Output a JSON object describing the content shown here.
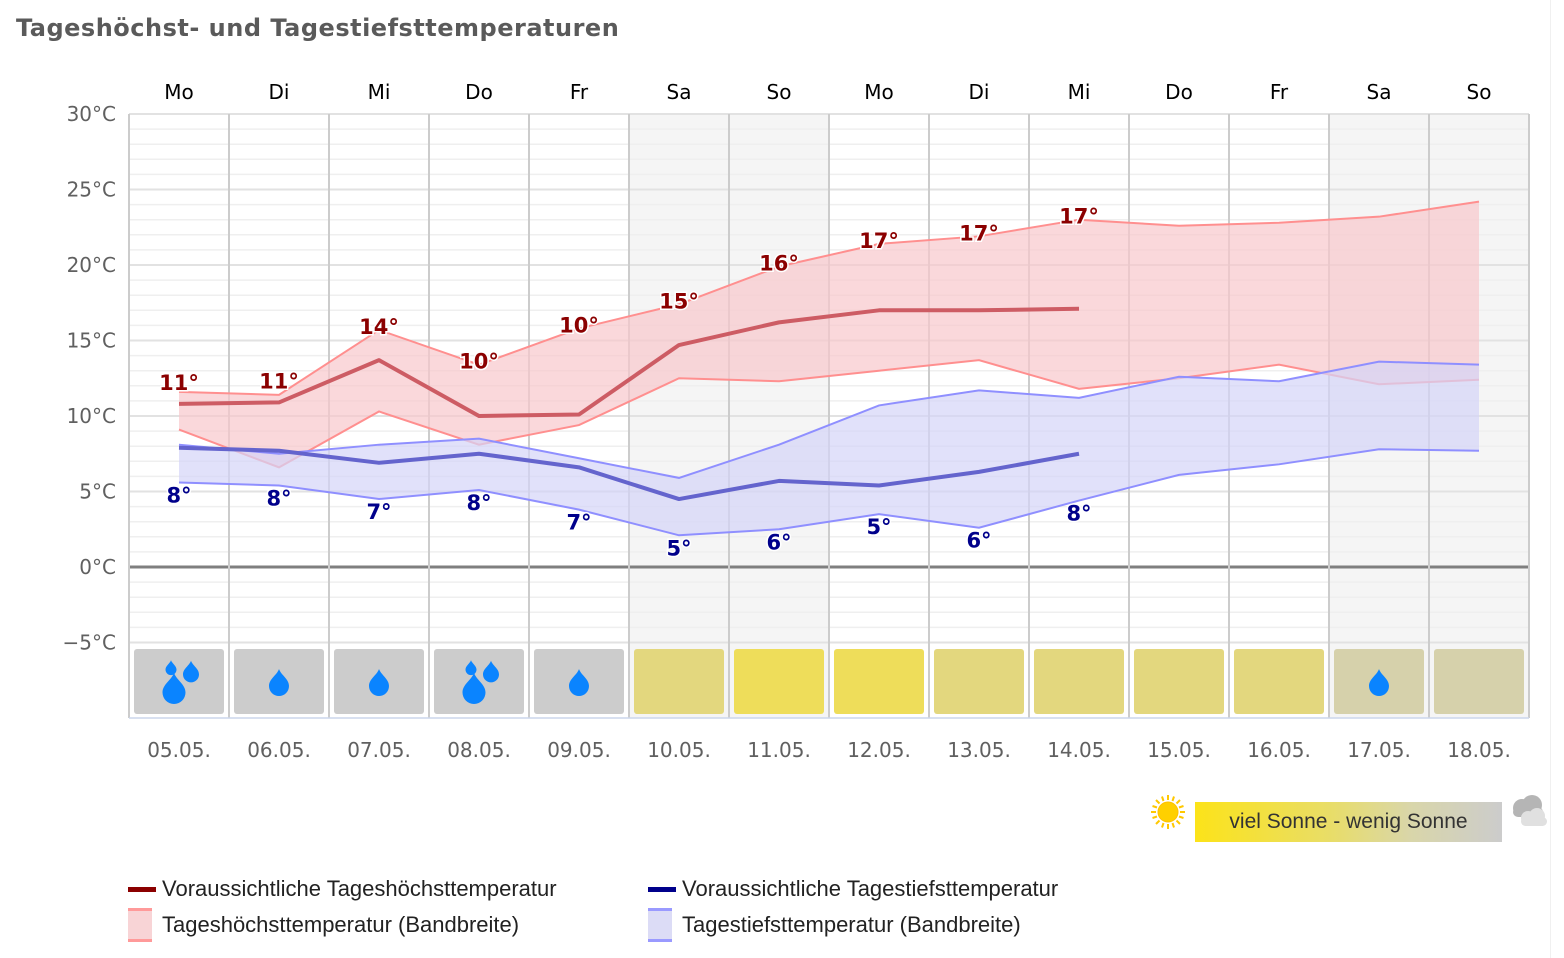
{
  "title": "Tageshöchst- und Tagestiefsttemperaturen",
  "chart_data": {
    "type": "line",
    "title": "Tageshöchst- und Tagestiefsttemperaturen",
    "weekdays": [
      "Mo",
      "Di",
      "Mi",
      "Do",
      "Fr",
      "Sa",
      "So",
      "Mo",
      "Di",
      "Mi",
      "Do",
      "Fr",
      "Sa",
      "So"
    ],
    "categories": [
      "05.05.",
      "06.05.",
      "07.05.",
      "08.05.",
      "09.05.",
      "10.05.",
      "11.05.",
      "12.05.",
      "13.05.",
      "14.05.",
      "15.05.",
      "16.05.",
      "17.05.",
      "18.05."
    ],
    "weekend_indices": [
      5,
      6,
      12,
      13
    ],
    "ylim": [
      -10,
      30
    ],
    "y_ticks": [
      30,
      25,
      20,
      15,
      10,
      5,
      0,
      -5
    ],
    "y_tick_labels": [
      "30°C",
      "25°C",
      "20°C",
      "15°C",
      "10°C",
      "5°C",
      "0°C",
      "−5°C"
    ],
    "grid": true,
    "series": [
      {
        "name": "Voraussichtliche Tageshöchsttemperatur",
        "type": "line",
        "color": "#8b0000",
        "line_color": "#cd5c64",
        "values": [
          10.8,
          10.9,
          13.7,
          10.0,
          10.1,
          14.7,
          16.2,
          17.0,
          17.0,
          17.1,
          null,
          null,
          null,
          null
        ],
        "labels": [
          "11°",
          "11°",
          "14°",
          "10°",
          "10°",
          "15°",
          "16°",
          "17°",
          "17°",
          "17°",
          null,
          null,
          null,
          null
        ]
      },
      {
        "name": "Voraussichtliche Tagestiefsttemperatur",
        "type": "line",
        "color": "#00008b",
        "line_color": "#6464cd",
        "values": [
          7.9,
          7.7,
          6.9,
          7.5,
          6.6,
          4.5,
          5.7,
          5.4,
          6.3,
          7.5,
          null,
          null,
          null,
          null
        ],
        "labels": [
          "8°",
          "8°",
          "7°",
          "8°",
          "7°",
          "5°",
          "6°",
          "5°",
          "6°",
          "8°",
          null,
          null,
          null,
          null
        ]
      },
      {
        "name": "Tageshöchsttemperatur (Bandbreite)",
        "type": "band",
        "fill": "#f8c8cc",
        "stroke": "#ff8f8f",
        "upper": [
          11.6,
          11.4,
          15.7,
          13.4,
          15.8,
          17.4,
          19.9,
          21.4,
          21.9,
          23.0,
          22.6,
          22.8,
          23.2,
          24.2
        ],
        "lower": [
          9.1,
          6.6,
          10.3,
          8.1,
          9.4,
          12.5,
          12.3,
          13.0,
          13.7,
          11.8,
          12.5,
          13.4,
          12.1,
          12.4
        ]
      },
      {
        "name": "Tagestiefsttemperatur (Bandbreite)",
        "type": "band",
        "fill": "#d4d4f8",
        "stroke": "#8f8fff",
        "upper": [
          8.1,
          7.5,
          8.1,
          8.5,
          7.2,
          5.9,
          8.1,
          10.7,
          11.7,
          11.2,
          12.6,
          12.3,
          13.6,
          13.4
        ],
        "lower": [
          5.6,
          5.4,
          4.5,
          5.1,
          3.8,
          2.1,
          2.5,
          3.5,
          2.6,
          4.4,
          6.1,
          6.8,
          7.8,
          7.7
        ]
      }
    ],
    "weather": [
      {
        "sun_color": "#cccccc",
        "rain": "heavy-rain-icon"
      },
      {
        "sun_color": "#cccccc",
        "rain": "rain-drop-icon"
      },
      {
        "sun_color": "#cccccc",
        "rain": "rain-drop-icon"
      },
      {
        "sun_color": "#cccccc",
        "rain": "heavy-rain-icon"
      },
      {
        "sun_color": "#cccccc",
        "rain": "rain-drop-icon"
      },
      {
        "sun_color": "#e3d77e",
        "rain": null
      },
      {
        "sun_color": "#eedd5a",
        "rain": null
      },
      {
        "sun_color": "#eedd5a",
        "rain": null
      },
      {
        "sun_color": "#e3d77e",
        "rain": null
      },
      {
        "sun_color": "#e3d77e",
        "rain": null
      },
      {
        "sun_color": "#e3d77e",
        "rain": null
      },
      {
        "sun_color": "#e3d77e",
        "rain": null
      },
      {
        "sun_color": "#d6d1ab",
        "rain": "rain-drop-icon"
      },
      {
        "sun_color": "#d6d1ab",
        "rain": null
      }
    ],
    "legend_position": "bottom-left"
  },
  "legend": {
    "items": [
      {
        "label": "Voraussichtliche Tageshöchsttemperatur",
        "color": "#8b0000"
      },
      {
        "label": "Voraussichtliche Tagestiefsttemperatur",
        "color": "#00008b"
      },
      {
        "label": "Tageshöchsttemperatur (Bandbreite)",
        "fill": "#f8d4d6",
        "stroke": "#ff9a9a"
      },
      {
        "label": "Tagestiefsttemperatur (Bandbreite)",
        "fill": "#dcdcf6",
        "stroke": "#9a9aff"
      }
    ]
  },
  "sun_scale": {
    "label": "viel Sonne - wenig Sonne",
    "left_icon": "sun-icon",
    "right_icon": "cloud-icon"
  }
}
